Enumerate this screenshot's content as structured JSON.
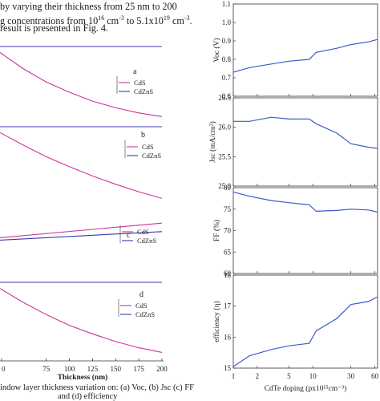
{
  "text": {
    "lines": [
      "by varying their thickness from 25 nm to 200",
      "g concentrations from 10",
      "result is presented in Fig. 4."
    ],
    "conc_sup1": "16",
    "conc_mid": " cm",
    "conc_sup2": "-3",
    "conc_to": " to 5.1x10",
    "conc_sup3": "19",
    "conc_end": " cm",
    "conc_sup4": "-3",
    "conc_dot": ".",
    "caption_line1": "indow layer thickness variation on: (a) Voc, (b) Jsc (c) FF",
    "caption_line2": "and (d) efficiency"
  },
  "chart_data": [
    {
      "type": "line",
      "panel": "thickness-variation",
      "xlabel": "Thickness (nm)",
      "x_ticks": [
        "0",
        "75",
        "100",
        "125",
        "150",
        "175",
        "200"
      ],
      "subplots": [
        {
          "letter": "a",
          "legend": [
            "CdS",
            "CdZnS"
          ],
          "series": [
            {
              "name": "CdS",
              "color": "#cc3399",
              "x": [
                25,
                50,
                75,
                100,
                125,
                150,
                175,
                200
              ],
              "y": [
                0.92,
                0.7,
                0.52,
                0.38,
                0.26,
                0.17,
                0.1,
                0.05
              ]
            },
            {
              "name": "CdZnS",
              "color": "#3a3ab0",
              "x": [
                25,
                200
              ],
              "y": [
                1.0,
                1.0
              ]
            }
          ]
        },
        {
          "letter": "b",
          "legend": [
            "CdS",
            "CdZnS"
          ],
          "series": [
            {
              "name": "CdS",
              "color": "#cc3399",
              "x": [
                25,
                50,
                75,
                100,
                125,
                150,
                175,
                200
              ],
              "y": [
                0.93,
                0.78,
                0.64,
                0.52,
                0.41,
                0.31,
                0.22,
                0.14
              ]
            },
            {
              "name": "CdZnS",
              "color": "#3a3ab0",
              "x": [
                25,
                200
              ],
              "y": [
                1.0,
                1.0
              ]
            }
          ]
        },
        {
          "letter": "c",
          "legend": [
            "CdS",
            "CdZnS"
          ],
          "series": [
            {
              "name": "CdS",
              "color": "#cc3399",
              "x": [
                25,
                200
              ],
              "y": [
                0.6,
                0.84
              ]
            },
            {
              "name": "CdZnS",
              "color": "#3a3ab0",
              "x": [
                25,
                200
              ],
              "y": [
                0.56,
                0.7
              ]
            }
          ]
        },
        {
          "letter": "d",
          "legend": [
            "CdS",
            "CdZnS"
          ],
          "series": [
            {
              "name": "CdS",
              "color": "#cc3399",
              "x": [
                25,
                50,
                75,
                100,
                125,
                150,
                175,
                200
              ],
              "y": [
                0.92,
                0.74,
                0.58,
                0.44,
                0.33,
                0.23,
                0.15,
                0.09
              ]
            },
            {
              "name": "CdZnS",
              "color": "#3a3ab0",
              "x": [
                25,
                200
              ],
              "y": [
                1.0,
                1.0
              ]
            }
          ]
        }
      ]
    },
    {
      "type": "line",
      "panel": "cdte-doping",
      "xlabel": "CdTe doping (px10¹⁵cm⁻³)",
      "x_scale": "log",
      "x_ticks": [
        "1",
        "2",
        "5",
        "10",
        "30",
        "60"
      ],
      "x_tick_values": [
        1,
        2,
        5,
        10,
        30,
        60
      ],
      "line_color": "#3a5cc7",
      "x": [
        1,
        1.6,
        3,
        5,
        9,
        11,
        20,
        30,
        50,
        65
      ],
      "subplots": [
        {
          "ylabel": "Voc (V)",
          "ylim": [
            0.6,
            1.1
          ],
          "yticks": [
            "0.6",
            "0.7",
            "0.8",
            "0.9",
            "1.0",
            "1.1"
          ],
          "ytick_values": [
            0.6,
            0.7,
            0.8,
            0.9,
            1.0,
            1.1
          ],
          "y": [
            0.73,
            0.755,
            0.775,
            0.79,
            0.8,
            0.838,
            0.86,
            0.88,
            0.895,
            0.908
          ]
        },
        {
          "ylabel": "Jsc (mA/cm²)",
          "ylim": [
            25.0,
            26.5
          ],
          "yticks": [
            "25.0",
            "25.5",
            "26.0",
            "26.5"
          ],
          "ytick_values": [
            25.0,
            25.5,
            26.0,
            26.5
          ],
          "y": [
            26.1,
            26.1,
            26.17,
            26.14,
            26.14,
            26.06,
            25.9,
            25.72,
            25.66,
            25.64
          ]
        },
        {
          "ylabel": "FF (%)",
          "ylim": [
            60,
            80
          ],
          "yticks": [
            "60",
            "65",
            "70",
            "75",
            "80"
          ],
          "ytick_values": [
            60,
            65,
            70,
            75,
            80
          ],
          "y": [
            79.0,
            78.0,
            77.0,
            76.5,
            76.0,
            74.5,
            74.7,
            75.0,
            74.8,
            74.3
          ]
        },
        {
          "ylabel": "efficiency (η)",
          "ylim": [
            15,
            18
          ],
          "yticks": [
            "15",
            "16",
            "17",
            "18"
          ],
          "ytick_values": [
            15,
            16,
            17,
            18
          ],
          "y": [
            15.05,
            15.4,
            15.6,
            15.72,
            15.8,
            16.2,
            16.6,
            17.05,
            17.15,
            17.3
          ]
        }
      ]
    }
  ]
}
